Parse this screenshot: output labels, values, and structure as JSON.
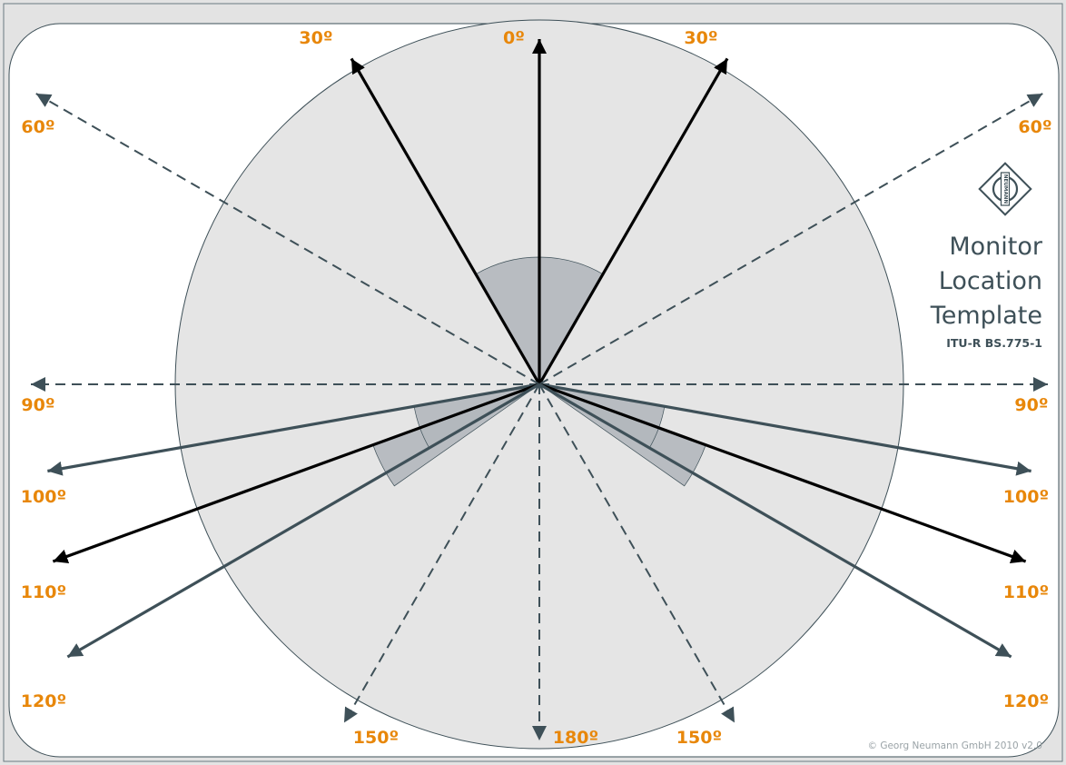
{
  "title_lines": [
    "Monitor",
    "Location",
    "Template"
  ],
  "subtitle": "ITU-R BS.775-1",
  "copyright": "© Georg Neumann GmbH 2010 v2.0",
  "logo": {
    "name": "neumann-diamond-logo",
    "text": "NEUMANN"
  },
  "colors": {
    "background": "#e3e3e3",
    "panel": "#ffffff",
    "circle": "#e5e5e5",
    "sector": "#b3b7bd",
    "black_arrow": "#000000",
    "slate_arrow": "#3e5058",
    "dashed_arrow": "#3e5058",
    "label": "#e8870a",
    "text": "#3e5058"
  },
  "zones": [
    {
      "name": "front-zone",
      "from": 0,
      "to": 30,
      "symmetric": true
    },
    {
      "name": "surround-zone-inner",
      "from": 100,
      "to": 120,
      "symmetric": true
    },
    {
      "name": "surround-zone-outer",
      "from": 110,
      "to": 125,
      "symmetric": true
    }
  ],
  "rays": [
    {
      "name": "ray-0",
      "angle": 0,
      "style": "black",
      "label": "0º"
    },
    {
      "name": "ray-30-left",
      "angle": -30,
      "style": "black",
      "label": "30º"
    },
    {
      "name": "ray-30-right",
      "angle": 30,
      "style": "black",
      "label": "30º"
    },
    {
      "name": "ray-60-left",
      "angle": -60,
      "style": "dashed",
      "label": "60º"
    },
    {
      "name": "ray-60-right",
      "angle": 60,
      "style": "dashed",
      "label": "60º"
    },
    {
      "name": "ray-90-left",
      "angle": -90,
      "style": "dashed",
      "label": "90º"
    },
    {
      "name": "ray-90-right",
      "angle": 90,
      "style": "dashed",
      "label": "90º"
    },
    {
      "name": "ray-100-left",
      "angle": -100,
      "style": "slate",
      "label": "100º"
    },
    {
      "name": "ray-100-right",
      "angle": 100,
      "style": "slate",
      "label": "100º"
    },
    {
      "name": "ray-110-left",
      "angle": -110,
      "style": "black",
      "label": "110º"
    },
    {
      "name": "ray-110-right",
      "angle": 110,
      "style": "black",
      "label": "110º"
    },
    {
      "name": "ray-120-left",
      "angle": -120,
      "style": "slate",
      "label": "120º"
    },
    {
      "name": "ray-120-right",
      "angle": 120,
      "style": "slate",
      "label": "120º"
    },
    {
      "name": "ray-150-left",
      "angle": -150,
      "style": "dashed",
      "label": "150º"
    },
    {
      "name": "ray-150-right",
      "angle": 150,
      "style": "dashed",
      "label": "150º"
    },
    {
      "name": "ray-180",
      "angle": 180,
      "style": "dashed",
      "label": "180º"
    }
  ]
}
